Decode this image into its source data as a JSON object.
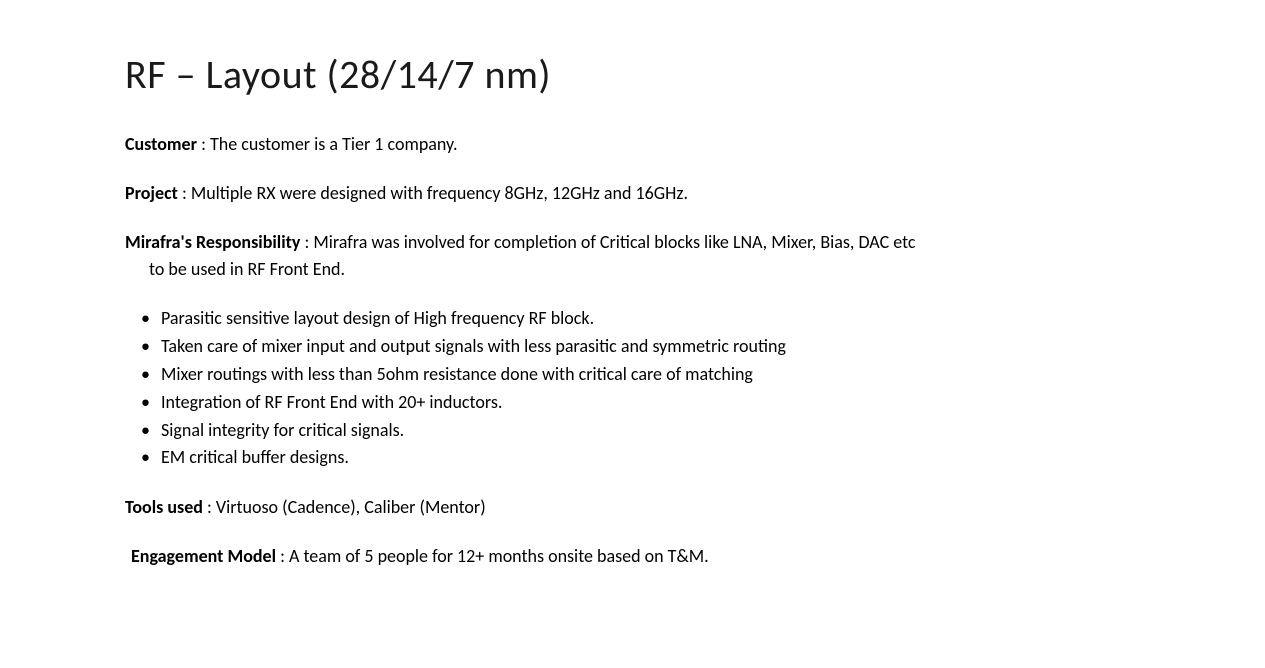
{
  "title": "RF – Layout (28/14/7 nm)",
  "sections": {
    "customer": {
      "label": "Customer",
      "text": " : The customer is a Tier 1 company."
    },
    "project": {
      "label": "Project",
      "text": " : Multiple RX were designed with frequency 8GHz, 12GHz and 16GHz."
    },
    "responsibility": {
      "label": "Mirafra's Responsibility",
      "text": " : Mirafra was involved for completion of Critical blocks like LNA, Mixer, Bias, DAC etc",
      "continuation": "to be used in RF Front End."
    },
    "tools": {
      "label": "Tools used",
      "text": " : Virtuoso (Cadence), Caliber (Mentor)"
    },
    "engagement": {
      "label": "Engagement Model",
      "text": " : A team of 5 people for 12+ months onsite based on T&M."
    }
  },
  "bullets": [
    "Parasitic sensitive layout design of High frequency RF block.",
    "Taken care of mixer input and output signals with less parasitic and symmetric routing",
    "Mixer routings with less than 5ohm resistance done with critical care of matching",
    "Integration of RF Front End with 20+ inductors.",
    "Signal integrity for critical signals.",
    "EM critical buffer designs."
  ],
  "styles": {
    "background_color": "#ffffff",
    "text_color": "#000000",
    "title_fontsize": 40,
    "title_fontweight": 300,
    "body_fontsize": 18,
    "label_fontweight": 700,
    "font_family": "Calibri"
  }
}
